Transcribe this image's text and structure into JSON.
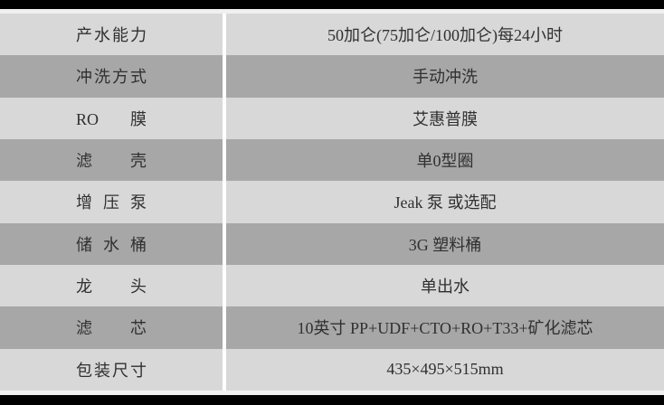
{
  "table": {
    "rows": [
      {
        "label": "产水能力",
        "value": "50加仑(75加仑/100加仑)每24小时"
      },
      {
        "label": "冲洗方式",
        "value": "手动冲洗"
      },
      {
        "label": "RO 膜",
        "value": "艾惠普膜"
      },
      {
        "label": "滤 壳",
        "value": "单0型圈"
      },
      {
        "label": "增 压 泵",
        "value": "Jeak 泵 或选配"
      },
      {
        "label": "储 水 桶",
        "value": "3G 塑料桶"
      },
      {
        "label": "龙 头",
        "value": "单出水"
      },
      {
        "label": "滤 芯",
        "value": "10英寸 PP+UDF+CTO+RO+T33+矿化滤芯"
      },
      {
        "label": "包装尺寸",
        "value": "435×495×515mm"
      }
    ]
  },
  "colors": {
    "row_light": "#d8d8d8",
    "row_dark": "#a7a7a7",
    "background": "#f0f0f0",
    "top_bar": "#000000",
    "bottom_bar": "#000000",
    "column_divider": "#ffffff",
    "text": "#303030"
  }
}
